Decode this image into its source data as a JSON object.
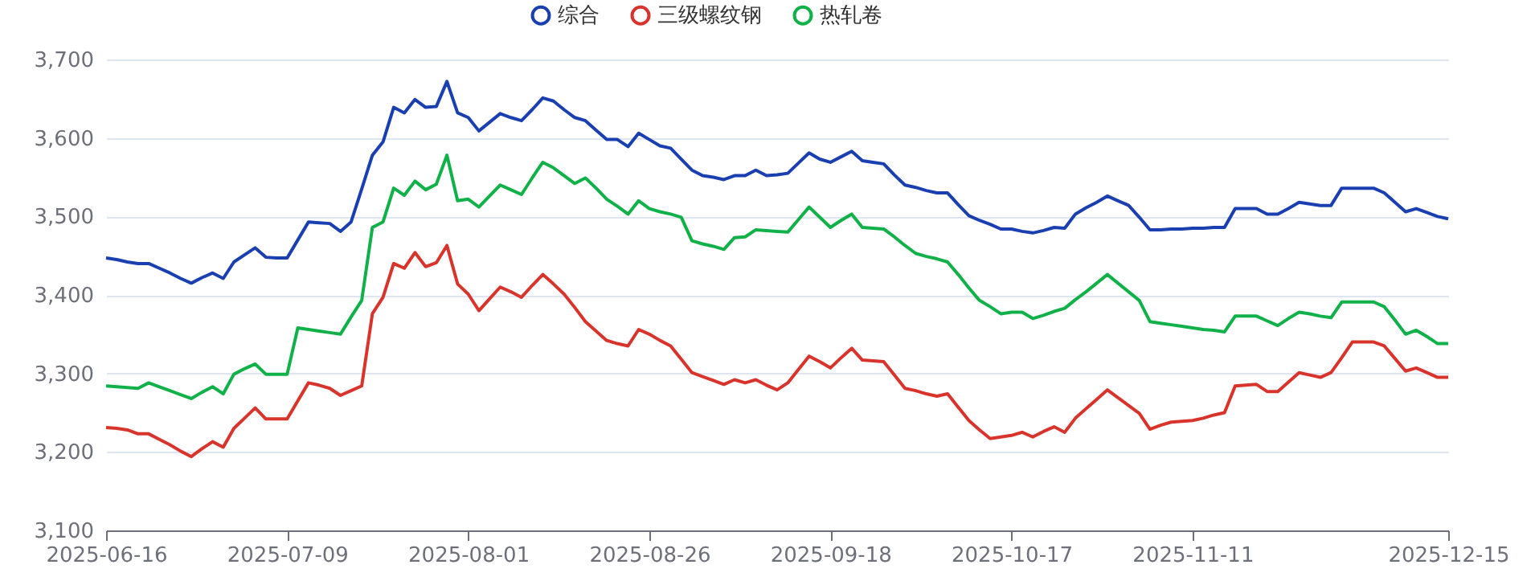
{
  "chart_data": {
    "type": "line",
    "categories": [
      "2025-06-16",
      null,
      null,
      null,
      null,
      null,
      null,
      null,
      null,
      null,
      null,
      null,
      null,
      null,
      null,
      null,
      null,
      "2025-07-09",
      null,
      null,
      null,
      null,
      null,
      null,
      null,
      null,
      null,
      null,
      null,
      null,
      null,
      null,
      null,
      null,
      "2025-08-01",
      null,
      null,
      null,
      null,
      null,
      null,
      null,
      null,
      null,
      null,
      null,
      null,
      null,
      null,
      null,
      null,
      "2025-08-26",
      null,
      null,
      null,
      null,
      null,
      null,
      null,
      null,
      null,
      null,
      null,
      null,
      null,
      null,
      null,
      null,
      "2025-09-18",
      null,
      null,
      null,
      null,
      null,
      null,
      null,
      null,
      null,
      null,
      null,
      null,
      null,
      null,
      null,
      null,
      "2025-10-17",
      null,
      null,
      null,
      null,
      null,
      null,
      null,
      null,
      null,
      null,
      null,
      null,
      null,
      null,
      null,
      null,
      "2025-11-11",
      null,
      null,
      null,
      null,
      null,
      null,
      null,
      null,
      null,
      null,
      null,
      null,
      null,
      null,
      null,
      null,
      null,
      null,
      null,
      null,
      null,
      null,
      null,
      "2025-12-15"
    ],
    "ylim": [
      3100,
      3700
    ],
    "yticks": [
      {
        "value": 3100,
        "label": "3,100"
      },
      {
        "value": 3200,
        "label": "3,200"
      },
      {
        "value": 3300,
        "label": "3,300"
      },
      {
        "value": 3400,
        "label": "3,400"
      },
      {
        "value": 3500,
        "label": "3,500"
      },
      {
        "value": 3600,
        "label": "3,600"
      },
      {
        "value": 3700,
        "label": "3,700"
      }
    ],
    "grid": "y",
    "legend": "top",
    "line_style": "solid",
    "series": [
      {
        "name": "综合",
        "color": "#1a3fb0",
        "values": [
          3447,
          3445,
          3442,
          3440,
          3440,
          3434,
          3428,
          3421,
          3415,
          3422,
          3428,
          3421,
          3442,
          3451,
          3460,
          3448,
          3447,
          3447,
          3470,
          3493,
          3492,
          3491,
          3481,
          3493,
          3535,
          3578,
          3595,
          3639,
          3632,
          3649,
          3639,
          3640,
          3672,
          3632,
          3626,
          3609,
          3620,
          3631,
          3626,
          3622,
          3636,
          3651,
          3647,
          3636,
          3626,
          3622,
          3610,
          3598,
          3598,
          3589,
          3606,
          3598,
          3590,
          3587,
          3573,
          3559,
          3552,
          3550,
          3547,
          3552,
          3552,
          3559,
          3552,
          3553,
          3555,
          3568,
          3581,
          3573,
          3569,
          3576,
          3583,
          3571,
          3569,
          3567,
          3553,
          3540,
          3537,
          3533,
          3530,
          3530,
          3515,
          3501,
          3495,
          3490,
          3484,
          3484,
          3481,
          3479,
          3482,
          3486,
          3485,
          3503,
          3511,
          3518,
          3526,
          3520,
          3514,
          3499,
          3483,
          3483,
          3484,
          3484,
          3485,
          3485,
          3486,
          3486,
          3510,
          3510,
          3510,
          3503,
          3503,
          3510,
          3518,
          3516,
          3514,
          3514,
          3536,
          3536,
          3536,
          3536,
          3530,
          3518,
          3506,
          3510,
          3505,
          3500,
          3497
        ]
      },
      {
        "name": "三级螺纹钢",
        "color": "#d8342c",
        "values": [
          3231,
          3230,
          3228,
          3223,
          3223,
          3216,
          3209,
          3201,
          3194,
          3204,
          3213,
          3206,
          3230,
          3243,
          3256,
          3242,
          3242,
          3242,
          3265,
          3288,
          3285,
          3281,
          3272,
          3278,
          3284,
          3376,
          3397,
          3440,
          3434,
          3454,
          3436,
          3441,
          3463,
          3414,
          3401,
          3380,
          3395,
          3410,
          3404,
          3397,
          3412,
          3426,
          3414,
          3401,
          3384,
          3366,
          3354,
          3342,
          3338,
          3335,
          3356,
          3350,
          3342,
          3335,
          3318,
          3301,
          3296,
          3291,
          3286,
          3292,
          3288,
          3292,
          3285,
          3279,
          3288,
          3305,
          3322,
          3315,
          3307,
          3320,
          3332,
          3317,
          3316,
          3315,
          3298,
          3281,
          3278,
          3274,
          3271,
          3274,
          3257,
          3240,
          3228,
          3217,
          3219,
          3221,
          3225,
          3219,
          3226,
          3232,
          3225,
          3243,
          3255,
          3267,
          3279,
          3269,
          3259,
          3249,
          3229,
          3234,
          3238,
          3239,
          3240,
          3243,
          3247,
          3250,
          3284,
          3285,
          3286,
          3277,
          3277,
          3289,
          3301,
          3298,
          3295,
          3301,
          3320,
          3340,
          3340,
          3340,
          3335,
          3319,
          3303,
          3307,
          3301,
          3295,
          3295
        ]
      },
      {
        "name": "热轧卷",
        "color": "#11b14a",
        "values": [
          3284,
          3283,
          3282,
          3281,
          3288,
          3283,
          3278,
          3273,
          3268,
          3276,
          3283,
          3274,
          3299,
          3306,
          3312,
          3299,
          3299,
          3299,
          3358,
          3356,
          3354,
          3352,
          3350,
          3372,
          3393,
          3486,
          3493,
          3536,
          3527,
          3545,
          3534,
          3541,
          3578,
          3520,
          3522,
          3512,
          3526,
          3540,
          3534,
          3528,
          3549,
          3569,
          3562,
          3552,
          3542,
          3549,
          3536,
          3522,
          3513,
          3503,
          3520,
          3510,
          3506,
          3503,
          3499,
          3469,
          3465,
          3462,
          3458,
          3473,
          3474,
          3483,
          3482,
          3481,
          3480,
          3496,
          3512,
          3499,
          3486,
          3495,
          3503,
          3486,
          3485,
          3484,
          3474,
          3463,
          3453,
          3449,
          3446,
          3442,
          3426,
          3409,
          3393,
          3385,
          3376,
          3378,
          3378,
          3370,
          3374,
          3379,
          3383,
          3394,
          3404,
          3415,
          3426,
          3415,
          3404,
          3393,
          3366,
          3364,
          3362,
          3360,
          3358,
          3356,
          3355,
          3353,
          3373,
          3373,
          3373,
          3367,
          3361,
          3370,
          3378,
          3376,
          3373,
          3371,
          3391,
          3391,
          3391,
          3391,
          3385,
          3368,
          3350,
          3355,
          3347,
          3338,
          3338
        ]
      }
    ]
  }
}
